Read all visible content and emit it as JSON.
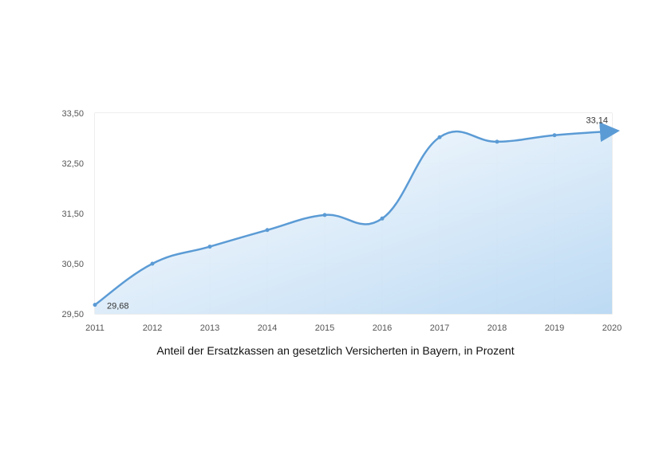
{
  "chart_data": {
    "type": "area",
    "title": "Anteil der Ersatzkassen an gesetzlich Versicherten in Bayern, in Prozent",
    "x": [
      "2011",
      "2012",
      "2013",
      "2014",
      "2015",
      "2016",
      "2017",
      "2018",
      "2019",
      "2020"
    ],
    "series": [
      {
        "values": [
          29.68,
          30.5,
          30.84,
          31.17,
          31.47,
          31.4,
          33.02,
          32.93,
          33.06,
          33.14
        ]
      }
    ],
    "ylim": [
      29.5,
      33.5
    ],
    "yticks": [
      "29,50",
      "30,50",
      "31,50",
      "32,50",
      "33,50"
    ],
    "ytick_values": [
      29.5,
      30.5,
      31.5,
      32.5,
      33.5
    ],
    "data_labels": [
      {
        "index": 0,
        "text": "29,68"
      },
      {
        "index": 9,
        "text": "33,14"
      }
    ],
    "grid": true,
    "colors": {
      "line": "#5b9bd5",
      "fill_light": "#eef6fd",
      "fill_dark": "#bcdaf4",
      "grid": "#dcdcdc"
    }
  }
}
